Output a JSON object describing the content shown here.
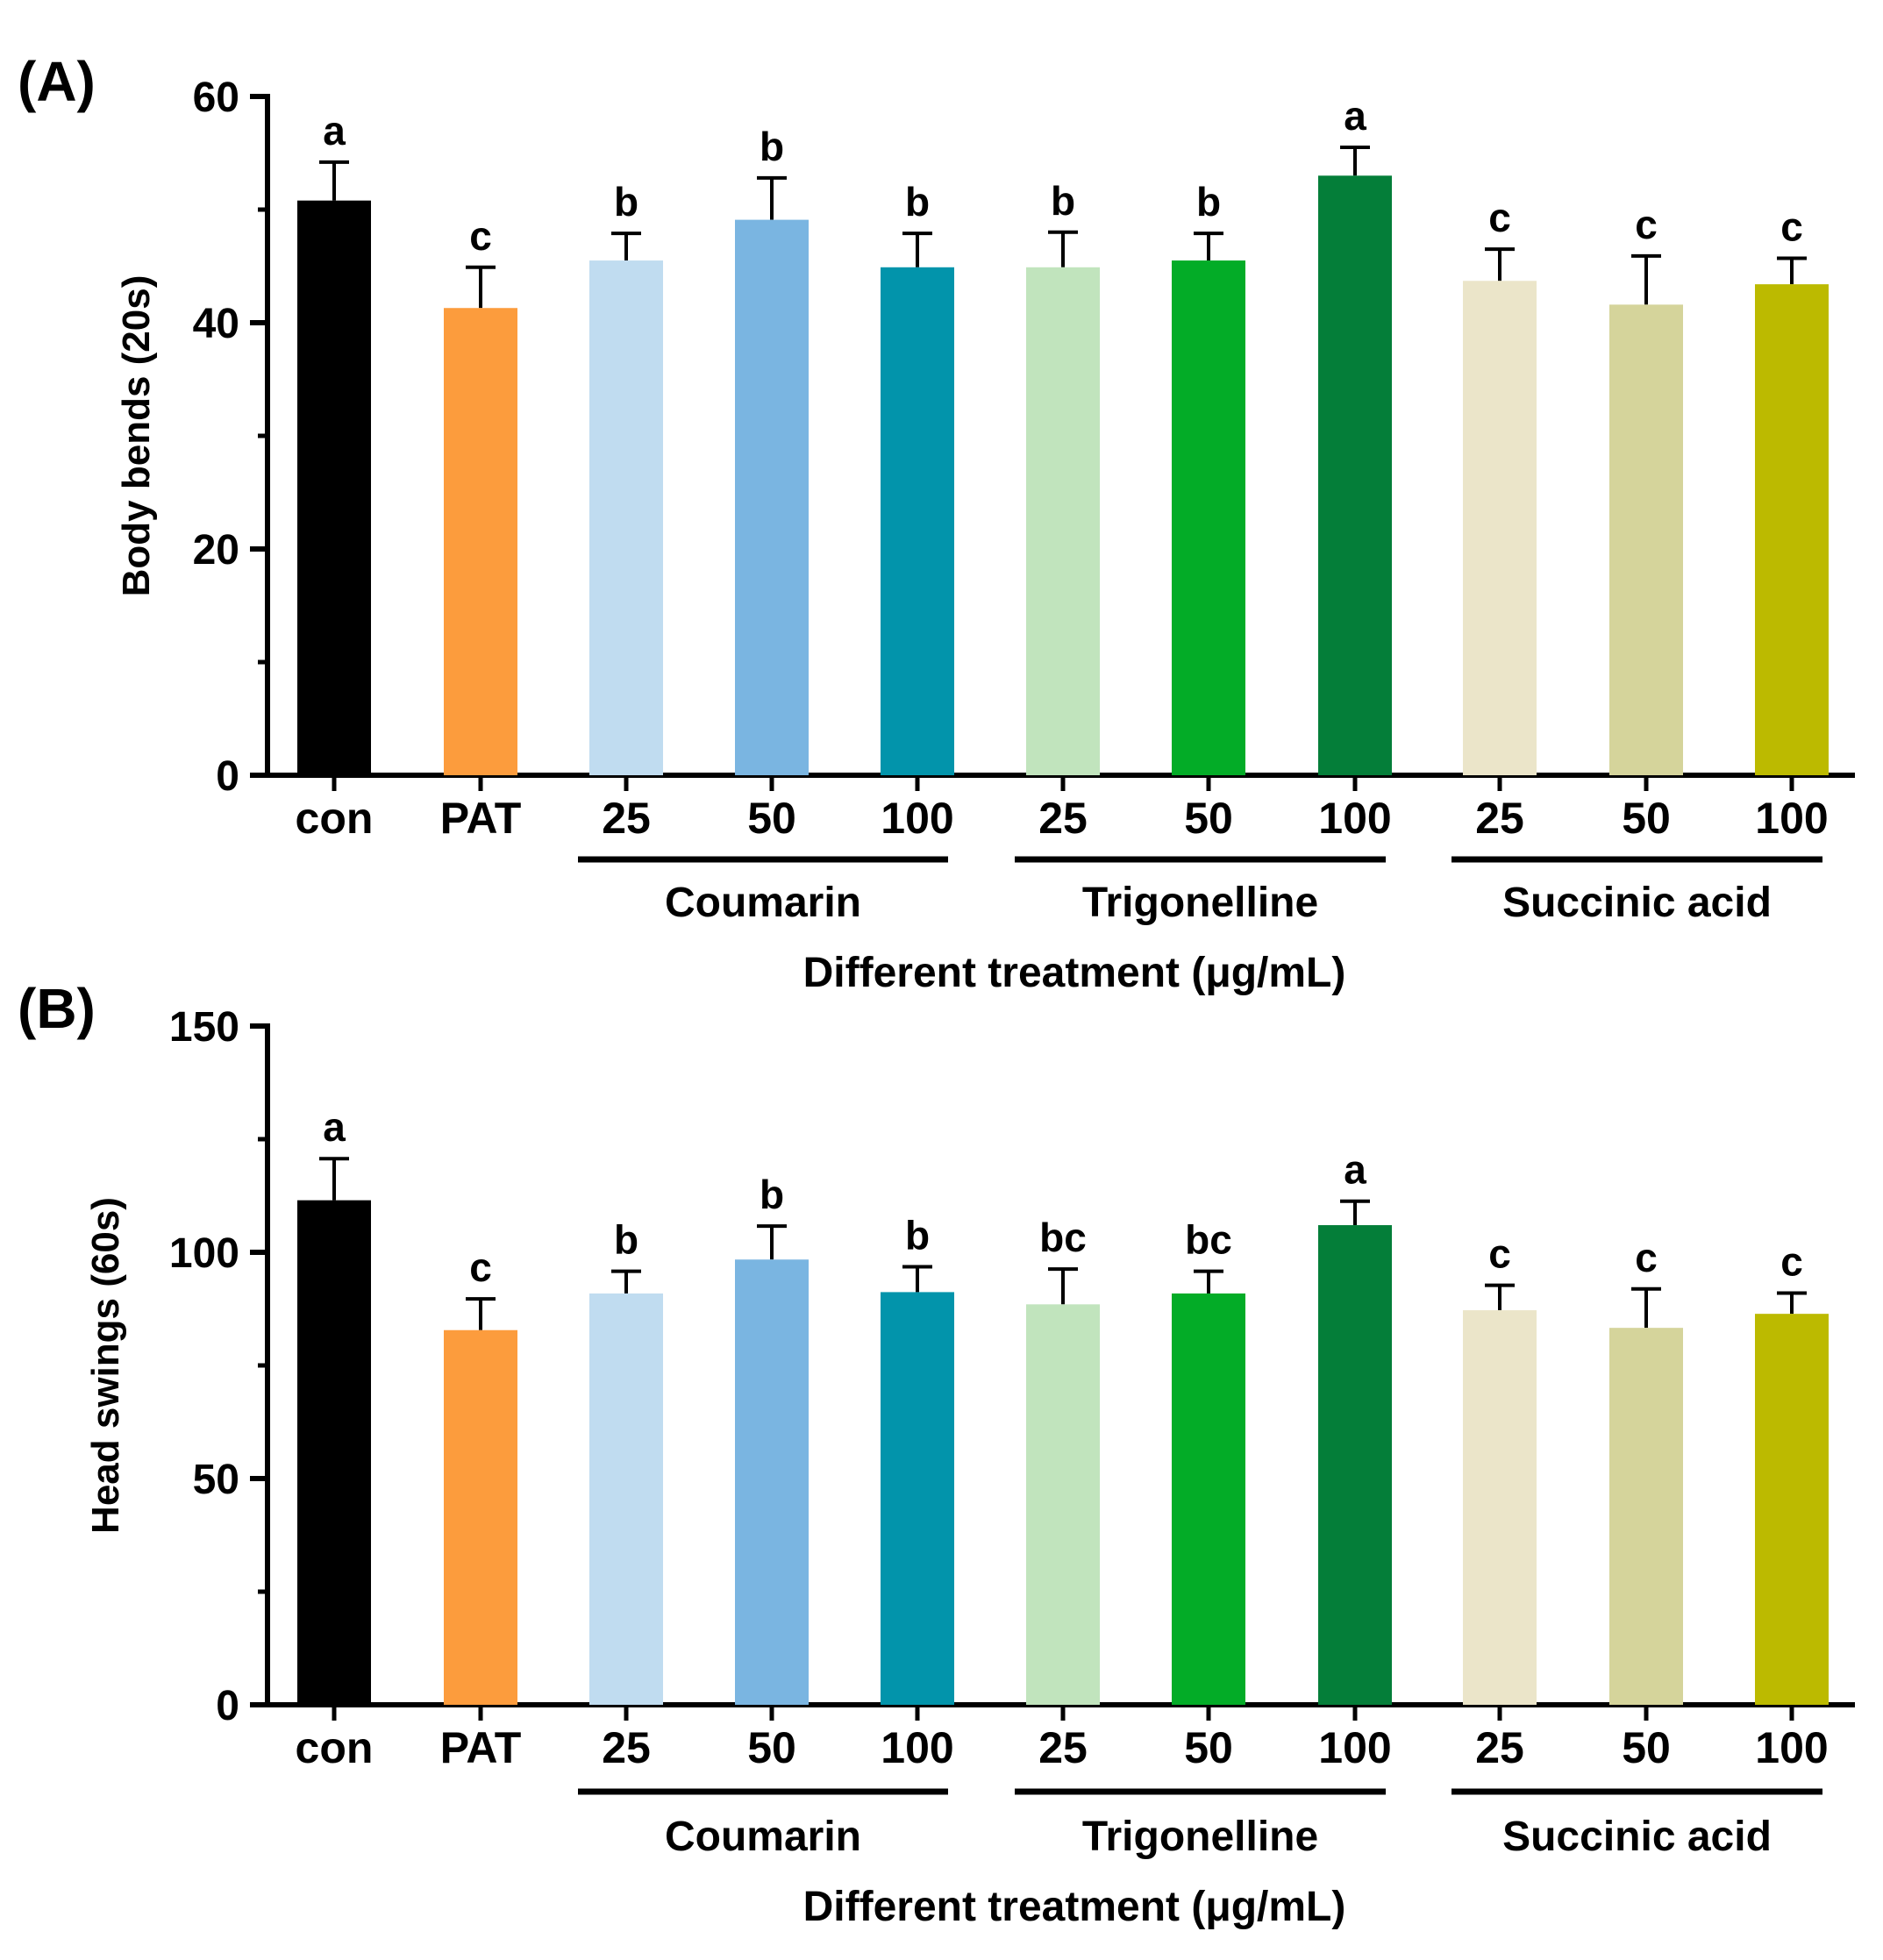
{
  "chart_data": [
    {
      "type": "bar",
      "panel_label": "(A)",
      "categories": [
        "con",
        "PAT",
        "25",
        "50",
        "100",
        "25",
        "50",
        "100",
        "25",
        "50",
        "100"
      ],
      "values": [
        50.8,
        41.3,
        45.5,
        49.1,
        44.9,
        44.9,
        45.5,
        53.0,
        43.7,
        41.6,
        43.4
      ],
      "errors": [
        3.4,
        3.6,
        2.4,
        3.7,
        3.0,
        3.1,
        2.4,
        2.5,
        2.8,
        4.3,
        2.3
      ],
      "significance": [
        "a",
        "c",
        "b",
        "b",
        "b",
        "b",
        "b",
        "a",
        "c",
        "c",
        "c"
      ],
      "colors": [
        "#000000",
        "#fc9c3d",
        "#c0dcf0",
        "#7ab5e1",
        "#0294ab",
        "#c1e4bd",
        "#03ac27",
        "#047e39",
        "#ebe5c9",
        "#d5d49b",
        "#bcba00"
      ],
      "groups": [
        {
          "label": "Coumarin",
          "start": 2,
          "end": 4
        },
        {
          "label": "Trigonelline",
          "start": 5,
          "end": 7
        },
        {
          "label": "Succinic acid",
          "start": 8,
          "end": 10
        }
      ],
      "xlabel": "Different treatment (μg/mL)",
      "ylabel": "Body bends (20s)",
      "ylim": [
        0,
        60
      ],
      "yticks": [
        0,
        20,
        40,
        60
      ],
      "ytick_labels": [
        "0",
        "20",
        "40",
        "60"
      ]
    },
    {
      "type": "bar",
      "panel_label": "(B)",
      "categories": [
        "con",
        "PAT",
        "25",
        "50",
        "100",
        "25",
        "50",
        "100",
        "25",
        "50",
        "100"
      ],
      "values": [
        111.5,
        82.8,
        90.9,
        98.4,
        91.2,
        88.5,
        90.9,
        106.0,
        87.2,
        83.3,
        86.4
      ],
      "errors": [
        9.2,
        6.9,
        4.9,
        7.4,
        5.6,
        7.8,
        4.9,
        5.3,
        5.5,
        8.6,
        4.6
      ],
      "significance": [
        "a",
        "c",
        "b",
        "b",
        "b",
        "bc",
        "bc",
        "a",
        "c",
        "c",
        "c"
      ],
      "colors": [
        "#000000",
        "#fc9c3d",
        "#c0dcf0",
        "#7ab5e1",
        "#0294ab",
        "#c1e4bd",
        "#03ac27",
        "#047e39",
        "#ebe5c9",
        "#d5d49b",
        "#bcba00"
      ],
      "groups": [
        {
          "label": "Coumarin",
          "start": 2,
          "end": 4
        },
        {
          "label": "Trigonelline",
          "start": 5,
          "end": 7
        },
        {
          "label": "Succinic acid",
          "start": 8,
          "end": 10
        }
      ],
      "xlabel": "Different treatment (μg/mL)",
      "ylabel": "Head swings (60s)",
      "ylim": [
        0,
        150
      ],
      "yticks": [
        0,
        50,
        100,
        150
      ],
      "ytick_labels": [
        "0",
        "50",
        "100",
        "150"
      ]
    }
  ]
}
